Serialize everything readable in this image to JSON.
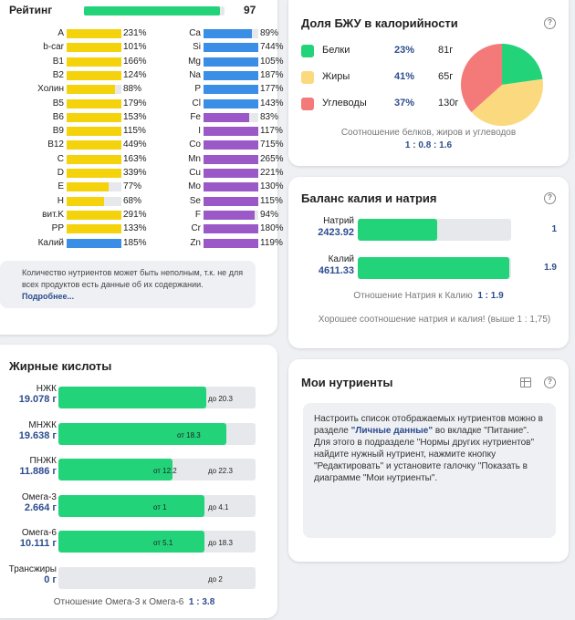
{
  "rating": {
    "label": "Рейтинг",
    "value": "97",
    "fill": 0.97
  },
  "nutrients_left": [
    {
      "name": "A",
      "pct": "231%",
      "fill": 1.0,
      "color": "#f4d20c"
    },
    {
      "name": "b-car",
      "pct": "101%",
      "fill": 1.0,
      "color": "#f4d20c"
    },
    {
      "name": "B1",
      "pct": "166%",
      "fill": 1.0,
      "color": "#f4d20c"
    },
    {
      "name": "B2",
      "pct": "124%",
      "fill": 1.0,
      "color": "#f4d20c"
    },
    {
      "name": "Холин",
      "pct": "88%",
      "fill": 0.88,
      "color": "#f4d20c"
    },
    {
      "name": "B5",
      "pct": "179%",
      "fill": 1.0,
      "color": "#f4d20c"
    },
    {
      "name": "B6",
      "pct": "153%",
      "fill": 1.0,
      "color": "#f4d20c"
    },
    {
      "name": "B9",
      "pct": "115%",
      "fill": 1.0,
      "color": "#f4d20c"
    },
    {
      "name": "B12",
      "pct": "449%",
      "fill": 1.0,
      "color": "#f4d20c"
    },
    {
      "name": "C",
      "pct": "163%",
      "fill": 1.0,
      "color": "#f4d20c"
    },
    {
      "name": "D",
      "pct": "339%",
      "fill": 1.0,
      "color": "#f4d20c"
    },
    {
      "name": "E",
      "pct": "77%",
      "fill": 0.77,
      "color": "#f4d20c"
    },
    {
      "name": "H",
      "pct": "68%",
      "fill": 0.68,
      "color": "#f4d20c"
    },
    {
      "name": "вит.K",
      "pct": "291%",
      "fill": 1.0,
      "color": "#f4d20c"
    },
    {
      "name": "PP",
      "pct": "133%",
      "fill": 1.0,
      "color": "#f4d20c"
    },
    {
      "name": "Калий",
      "pct": "185%",
      "fill": 1.0,
      "color": "#3a8ee6"
    }
  ],
  "nutrients_right": [
    {
      "name": "Ca",
      "pct": "89%",
      "fill": 0.89,
      "color": "#3a8ee6"
    },
    {
      "name": "Si",
      "pct": "744%",
      "fill": 1.0,
      "color": "#3a8ee6"
    },
    {
      "name": "Mg",
      "pct": "105%",
      "fill": 1.0,
      "color": "#3a8ee6"
    },
    {
      "name": "Na",
      "pct": "187%",
      "fill": 1.0,
      "color": "#3a8ee6"
    },
    {
      "name": "P",
      "pct": "177%",
      "fill": 1.0,
      "color": "#3a8ee6"
    },
    {
      "name": "Cl",
      "pct": "143%",
      "fill": 1.0,
      "color": "#3a8ee6"
    },
    {
      "name": "Fe",
      "pct": "83%",
      "fill": 0.83,
      "color": "#9b59c7"
    },
    {
      "name": "I",
      "pct": "117%",
      "fill": 1.0,
      "color": "#9b59c7"
    },
    {
      "name": "Co",
      "pct": "715%",
      "fill": 1.0,
      "color": "#9b59c7"
    },
    {
      "name": "Mn",
      "pct": "265%",
      "fill": 1.0,
      "color": "#9b59c7"
    },
    {
      "name": "Cu",
      "pct": "221%",
      "fill": 1.0,
      "color": "#9b59c7"
    },
    {
      "name": "Mo",
      "pct": "130%",
      "fill": 1.0,
      "color": "#9b59c7"
    },
    {
      "name": "Se",
      "pct": "115%",
      "fill": 1.0,
      "color": "#9b59c7"
    },
    {
      "name": "F",
      "pct": "94%",
      "fill": 0.94,
      "color": "#9b59c7"
    },
    {
      "name": "Cr",
      "pct": "180%",
      "fill": 1.0,
      "color": "#9b59c7"
    },
    {
      "name": "Zn",
      "pct": "119%",
      "fill": 1.0,
      "color": "#9b59c7"
    }
  ],
  "note": {
    "text": "Количество нутриентов может быть неполным, т.к. не для всех продуктов есть данные об их содержании.",
    "link": "Подробнее..."
  },
  "fatty": {
    "title": "Жирные кислоты",
    "rows": [
      {
        "name": "НЖК",
        "value": "19.078 г",
        "fill": 0.75,
        "mark_low": "",
        "mark_high": "до 20.3"
      },
      {
        "name": "МНЖК",
        "value": "19.638 г",
        "fill": 0.85,
        "mark_low": "от 18.3",
        "mark_high": ""
      },
      {
        "name": "ПНЖК",
        "value": "11.886 г",
        "fill": 0.58,
        "mark_low": "от 12.2",
        "mark_high": "до 22.3"
      },
      {
        "name": "Омега-3",
        "value": "2.664 г",
        "fill": 0.74,
        "mark_low": "от 1",
        "mark_high": "до 4.1"
      },
      {
        "name": "Омега-6",
        "value": "10.111 г",
        "fill": 0.74,
        "mark_low": "от 5.1",
        "mark_high": "до 18.3"
      },
      {
        "name": "Трансжиры",
        "value": "0 г",
        "fill": 0,
        "mark_low": "",
        "mark_high": "до 2"
      }
    ],
    "ratio_label": "Отношение Омега-3 к Омега-6",
    "ratio_value": "1 : 3.8"
  },
  "bju": {
    "title": "Доля БЖУ в калорийности",
    "help": "?",
    "items": [
      {
        "name": "Белки",
        "pct": "23%",
        "grams": "81г",
        "color": "#22d37a",
        "share": 0.23
      },
      {
        "name": "Жиры",
        "pct": "41%",
        "grams": "65г",
        "color": "#fbd97f",
        "share": 0.41
      },
      {
        "name": "Углеводы",
        "pct": "37%",
        "grams": "130г",
        "color": "#f47a7a",
        "share": 0.37
      }
    ],
    "caption": "Соотношение белков, жиров и углеводов",
    "ratio": "1 : 0.8 : 1.6"
  },
  "kna": {
    "title": "Баланс калия и натрия",
    "help": "?",
    "rows": [
      {
        "name": "Натрий",
        "value": "2423.92",
        "num": "1",
        "fill": 0.52
      },
      {
        "name": "Калий",
        "value": "4611.33",
        "num": "1.9",
        "fill": 0.99
      }
    ],
    "ratio_label": "Отношение Натрия к Калию",
    "ratio_value": "1 : 1.9",
    "good": "Хорошее соотношение натрия и калия! (выше 1 : 1,75)"
  },
  "my": {
    "title": "Мои нутриенты",
    "help": "?",
    "text1": "Настроить список отображаемых нутриентов можно в разделе ",
    "link": "\"Личные данные\"",
    "text2": " во вкладке \"Питание\". Для этого в подразделе \"Нормы других нутриентов\" найдите нужный нутриент, нажмите кнопку \"Редактировать\" и установите галочку \"Показать в диаграмме \"Мои нутриенты\"."
  }
}
